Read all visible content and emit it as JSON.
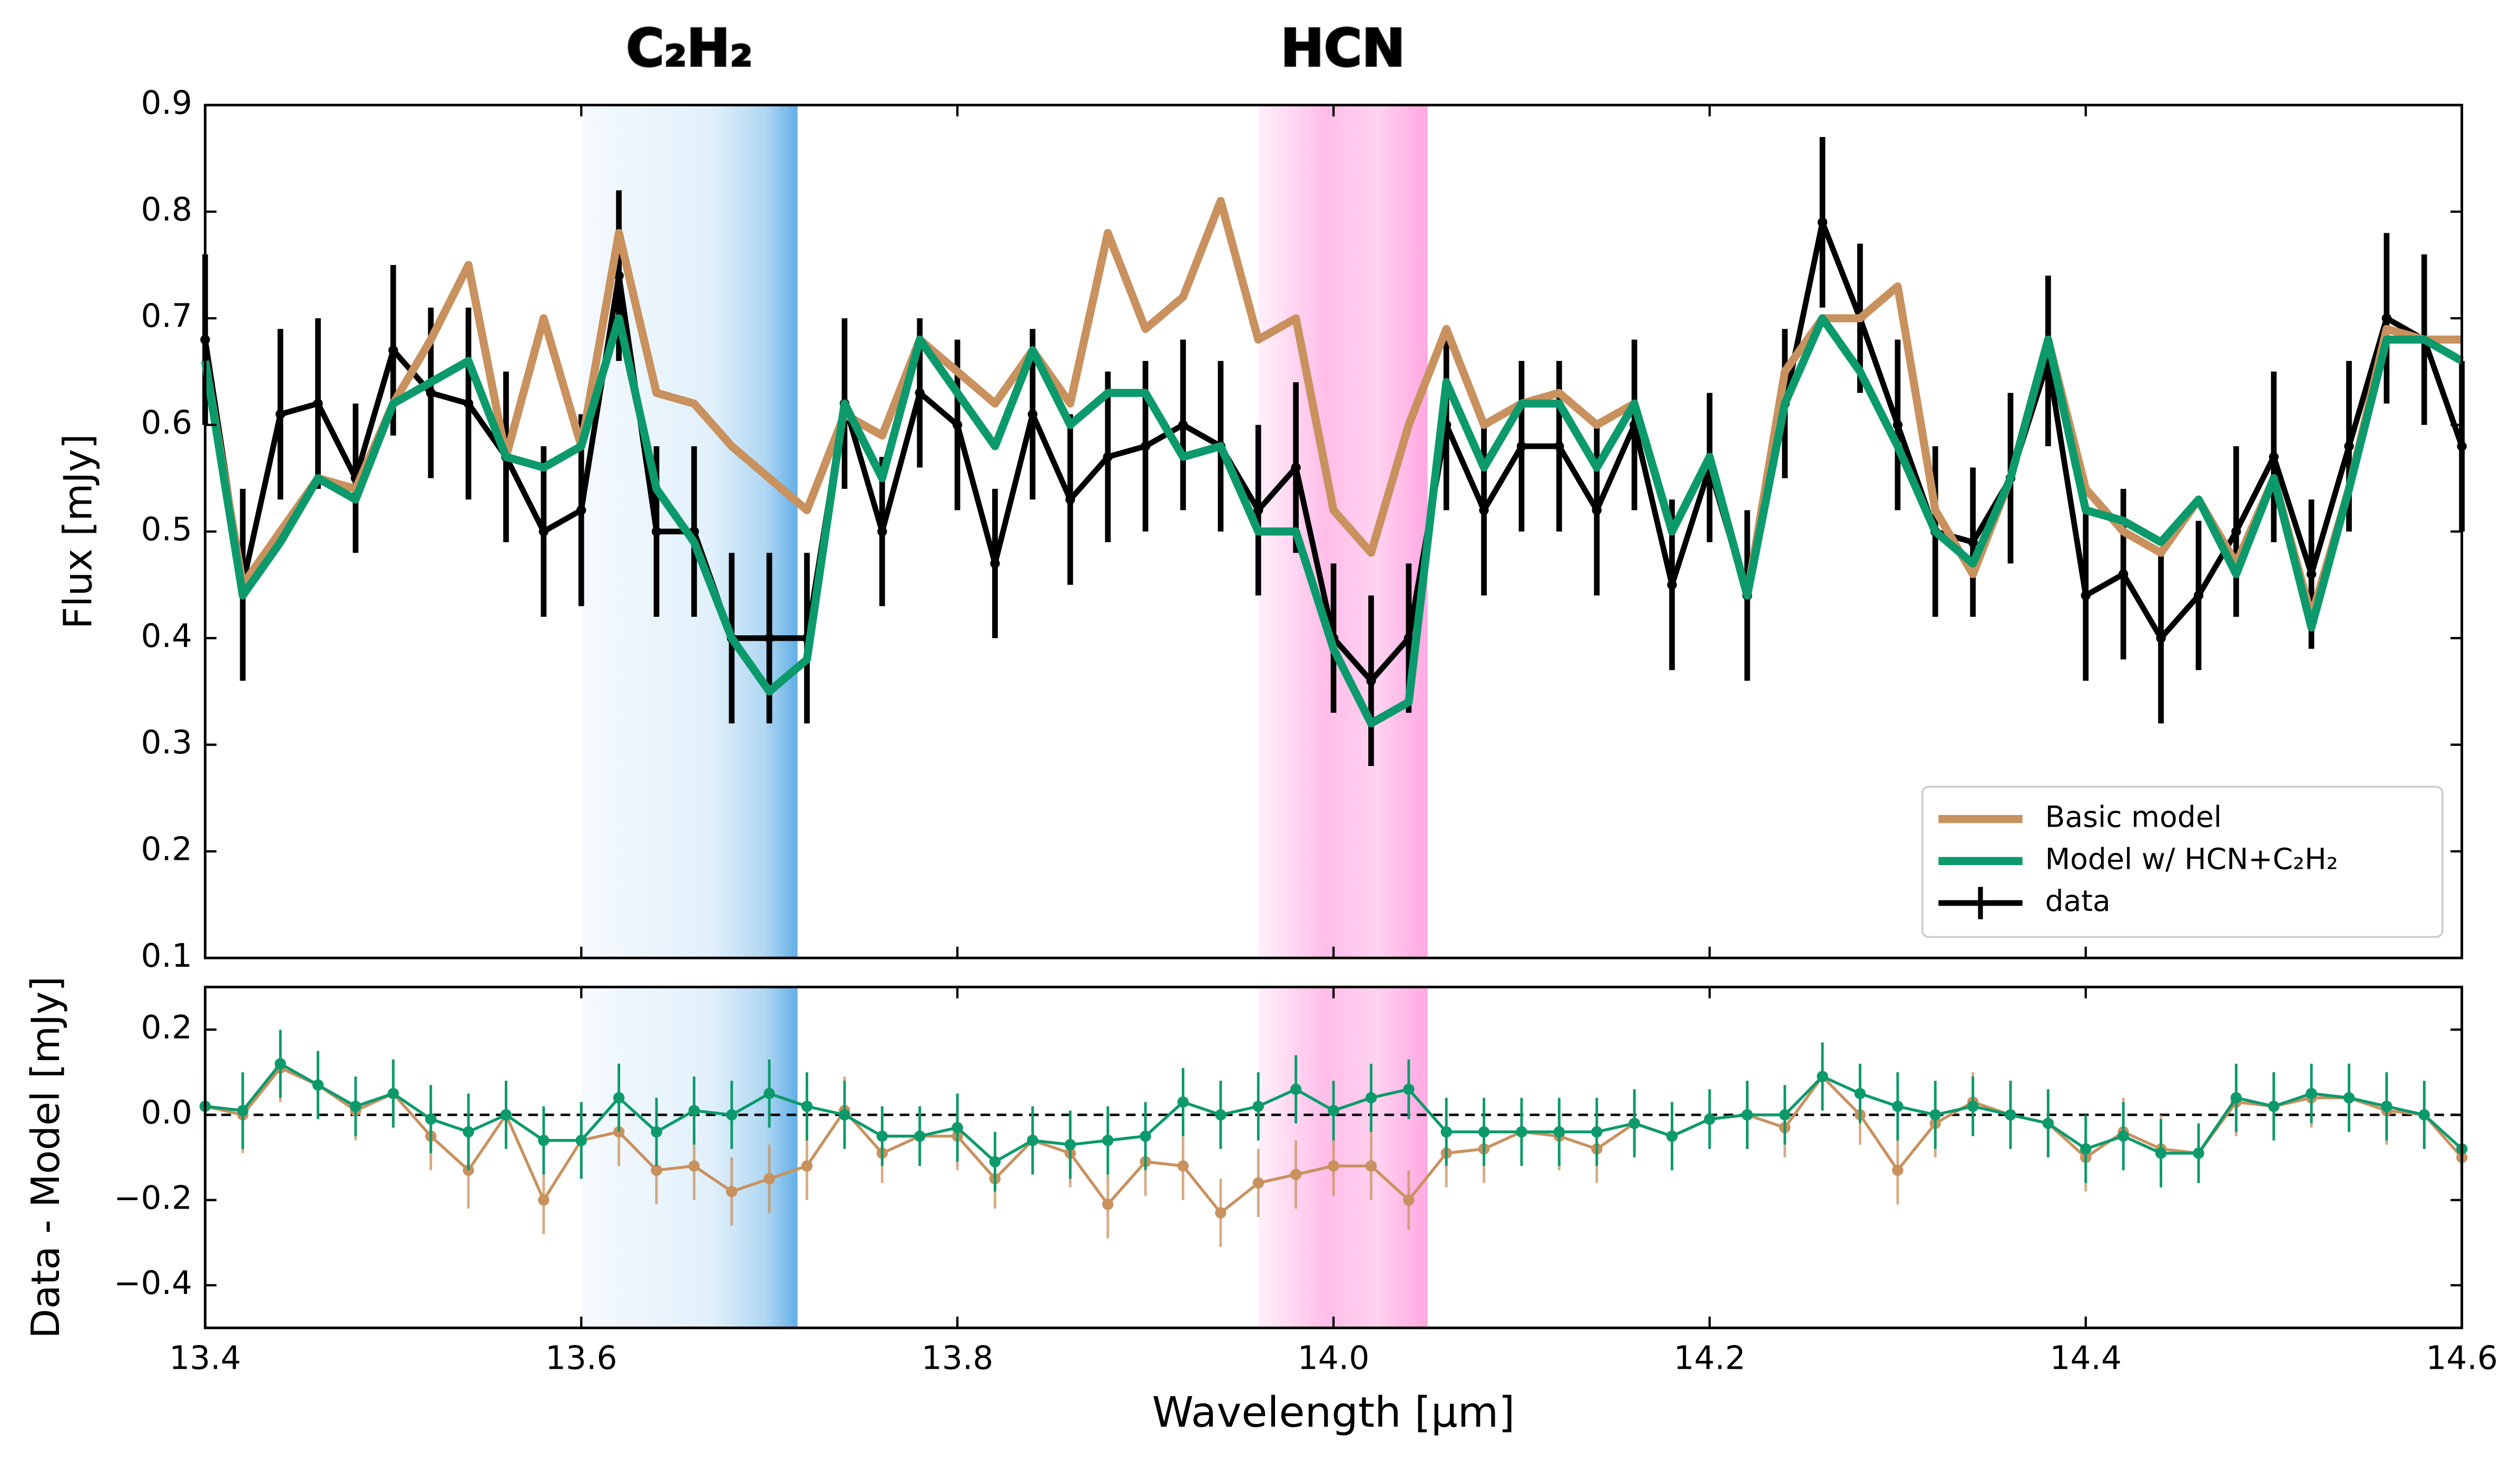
{
  "chart_data": [
    {
      "type": "line",
      "ylabel": "Flux [mJy]",
      "x": [
        13.4,
        13.42,
        13.44,
        13.46,
        13.48,
        13.5,
        13.52,
        13.54,
        13.56,
        13.58,
        13.6,
        13.62,
        13.64,
        13.66,
        13.68,
        13.7,
        13.72,
        13.74,
        13.76,
        13.78,
        13.8,
        13.82,
        13.84,
        13.86,
        13.88,
        13.9,
        13.92,
        13.94,
        13.96,
        13.98,
        14.0,
        14.02,
        14.04,
        14.06,
        14.08,
        14.1,
        14.12,
        14.14,
        14.16,
        14.18,
        14.2,
        14.22,
        14.24,
        14.26,
        14.28,
        14.3,
        14.32,
        14.34,
        14.36,
        14.38,
        14.4,
        14.42,
        14.44,
        14.46,
        14.48,
        14.5,
        14.52,
        14.54,
        14.56,
        14.58,
        14.6
      ],
      "xlim": [
        13.4,
        14.6
      ],
      "ylim": [
        0.1,
        0.9
      ],
      "yticks": [
        0.1,
        0.2,
        0.3,
        0.4,
        0.5,
        0.6,
        0.7,
        0.8,
        0.9
      ],
      "legend": "lower right",
      "bands": [
        {
          "label": "C₂H₂",
          "color": "#3a9be0",
          "x": [
            13.6,
            13.715
          ]
        },
        {
          "label": "HCN",
          "color": "#ff6ccd",
          "x": [
            13.96,
            14.05
          ]
        }
      ],
      "series": [
        {
          "name": "data",
          "color": "#000000",
          "values": [
            0.68,
            0.45,
            0.61,
            0.62,
            0.55,
            0.67,
            0.63,
            0.62,
            0.57,
            0.5,
            0.52,
            0.74,
            0.5,
            0.5,
            0.4,
            0.4,
            0.4,
            0.62,
            0.5,
            0.63,
            0.6,
            0.47,
            0.61,
            0.53,
            0.57,
            0.58,
            0.6,
            0.58,
            0.52,
            0.56,
            0.4,
            0.36,
            0.4,
            0.6,
            0.52,
            0.58,
            0.58,
            0.52,
            0.6,
            0.45,
            0.56,
            0.44,
            0.62,
            0.79,
            0.7,
            0.6,
            0.5,
            0.49,
            0.55,
            0.66,
            0.44,
            0.46,
            0.4,
            0.44,
            0.5,
            0.57,
            0.46,
            0.58,
            0.7,
            0.68,
            0.58
          ],
          "errors": [
            0.08,
            0.09,
            0.08,
            0.08,
            0.07,
            0.08,
            0.08,
            0.09,
            0.08,
            0.08,
            0.09,
            0.08,
            0.08,
            0.08,
            0.08,
            0.08,
            0.08,
            0.08,
            0.07,
            0.07,
            0.08,
            0.07,
            0.08,
            0.08,
            0.08,
            0.08,
            0.08,
            0.08,
            0.08,
            0.08,
            0.07,
            0.08,
            0.07,
            0.08,
            0.08,
            0.08,
            0.08,
            0.08,
            0.08,
            0.08,
            0.07,
            0.08,
            0.07,
            0.08,
            0.07,
            0.08,
            0.08,
            0.07,
            0.08,
            0.08,
            0.08,
            0.08,
            0.08,
            0.07,
            0.08,
            0.08,
            0.07,
            0.08,
            0.08,
            0.08,
            0.08
          ]
        },
        {
          "name": "Basic model",
          "color": "#c8915e",
          "values": [
            0.66,
            0.45,
            0.5,
            0.55,
            0.54,
            0.62,
            0.68,
            0.75,
            0.57,
            0.7,
            0.58,
            0.78,
            0.63,
            0.62,
            0.58,
            0.55,
            0.52,
            0.61,
            0.59,
            0.68,
            0.65,
            0.62,
            0.67,
            0.62,
            0.78,
            0.69,
            0.72,
            0.81,
            0.68,
            0.7,
            0.52,
            0.48,
            0.6,
            0.69,
            0.6,
            0.62,
            0.63,
            0.6,
            0.62,
            0.5,
            0.57,
            0.44,
            0.65,
            0.7,
            0.7,
            0.73,
            0.52,
            0.46,
            0.55,
            0.68,
            0.54,
            0.5,
            0.48,
            0.53,
            0.47,
            0.55,
            0.42,
            0.54,
            0.69,
            0.68,
            0.68
          ]
        },
        {
          "name": "Model w/ HCN+C₂H₂",
          "color": "#0c9a6c",
          "values": [
            0.66,
            0.44,
            0.49,
            0.55,
            0.53,
            0.62,
            0.64,
            0.66,
            0.57,
            0.56,
            0.58,
            0.7,
            0.54,
            0.49,
            0.4,
            0.35,
            0.38,
            0.62,
            0.55,
            0.68,
            0.63,
            0.58,
            0.67,
            0.6,
            0.63,
            0.63,
            0.57,
            0.58,
            0.5,
            0.5,
            0.39,
            0.32,
            0.34,
            0.64,
            0.56,
            0.62,
            0.62,
            0.56,
            0.62,
            0.5,
            0.57,
            0.44,
            0.62,
            0.7,
            0.65,
            0.58,
            0.5,
            0.47,
            0.55,
            0.68,
            0.52,
            0.51,
            0.49,
            0.53,
            0.46,
            0.55,
            0.41,
            0.54,
            0.68,
            0.68,
            0.66
          ]
        }
      ]
    },
    {
      "type": "line",
      "ylabel": "Data - Model [mJy]",
      "xlabel": "Wavelength [μm]",
      "x": [
        13.4,
        13.42,
        13.44,
        13.46,
        13.48,
        13.5,
        13.52,
        13.54,
        13.56,
        13.58,
        13.6,
        13.62,
        13.64,
        13.66,
        13.68,
        13.7,
        13.72,
        13.74,
        13.76,
        13.78,
        13.8,
        13.82,
        13.84,
        13.86,
        13.88,
        13.9,
        13.92,
        13.94,
        13.96,
        13.98,
        14.0,
        14.02,
        14.04,
        14.06,
        14.08,
        14.1,
        14.12,
        14.14,
        14.16,
        14.18,
        14.2,
        14.22,
        14.24,
        14.26,
        14.28,
        14.3,
        14.32,
        14.34,
        14.36,
        14.38,
        14.4,
        14.42,
        14.44,
        14.46,
        14.48,
        14.5,
        14.52,
        14.54,
        14.56,
        14.58,
        14.6
      ],
      "xlim": [
        13.4,
        14.6
      ],
      "xticks": [
        13.4,
        13.6,
        13.8,
        {
          "value": 14.0,
          "label": "14.0"
        },
        14.2,
        14.4,
        14.6
      ],
      "ylim": [
        -0.5,
        0.3
      ],
      "yticks": [
        {
          "value": -0.4,
          "label": "−0.4"
        },
        {
          "value": -0.2,
          "label": "−0.2"
        },
        {
          "value": 0,
          "label": "0.0"
        },
        0.2
      ],
      "reference_line": 0,
      "series": [
        {
          "color": "#c8915e",
          "values": [
            0.02,
            0,
            0.11,
            0.07,
            0.01,
            0.05,
            -0.05,
            -0.13,
            0,
            -0.2,
            -0.06,
            -0.04,
            -0.13,
            -0.12,
            -0.18,
            -0.15,
            -0.12,
            0.01,
            -0.09,
            -0.05,
            -0.05,
            -0.15,
            -0.06,
            -0.09,
            -0.21,
            -0.11,
            -0.12,
            -0.23,
            -0.16,
            -0.14,
            -0.12,
            -0.12,
            -0.2,
            -0.09,
            -0.08,
            -0.04,
            -0.05,
            -0.08,
            -0.02,
            -0.05,
            -0.01,
            0,
            -0.03,
            0.09,
            0,
            -0.13,
            -0.02,
            0.03,
            0,
            -0.02,
            -0.1,
            -0.04,
            -0.08,
            -0.09,
            0.03,
            0.02,
            0.04,
            0.04,
            0.01,
            0,
            -0.1
          ]
        },
        {
          "color": "#0c9a6c",
          "values": [
            0.02,
            0.01,
            0.12,
            0.07,
            0.02,
            0.05,
            -0.01,
            -0.04,
            0,
            -0.06,
            -0.06,
            0.04,
            -0.04,
            0.01,
            0,
            0.05,
            0.02,
            0,
            -0.05,
            -0.05,
            -0.03,
            -0.11,
            -0.06,
            -0.07,
            -0.06,
            -0.05,
            0.03,
            0,
            0.02,
            0.06,
            0.01,
            0.04,
            0.06,
            -0.04,
            -0.04,
            -0.04,
            -0.04,
            -0.04,
            -0.02,
            -0.05,
            -0.01,
            0,
            0,
            0.09,
            0.05,
            0.02,
            0,
            0.02,
            0,
            -0.02,
            -0.08,
            -0.05,
            -0.09,
            -0.09,
            0.04,
            0.02,
            0.05,
            0.04,
            0.02,
            0,
            -0.08
          ]
        }
      ]
    }
  ]
}
